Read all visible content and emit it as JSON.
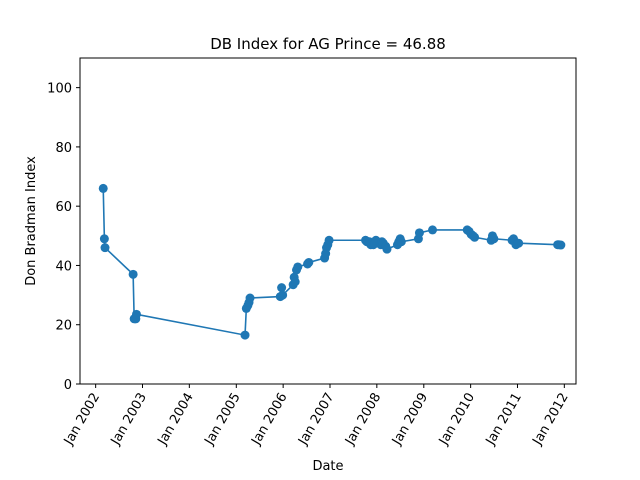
{
  "chart_data": {
    "type": "line",
    "title": "DB Index for AG Prince = 46.88",
    "xlabel": "Date",
    "ylabel": "Don Bradman Index",
    "ylim": [
      0,
      110
    ],
    "yticks": [
      0,
      20,
      40,
      60,
      80,
      100
    ],
    "xlim": [
      "2001-09-01",
      "2012-04-01"
    ],
    "xticks": [
      {
        "date": "2002-01-01",
        "label": "Jan 2002"
      },
      {
        "date": "2003-01-01",
        "label": "Jan 2003"
      },
      {
        "date": "2004-01-01",
        "label": "Jan 2004"
      },
      {
        "date": "2005-01-01",
        "label": "Jan 2005"
      },
      {
        "date": "2006-01-01",
        "label": "Jan 2006"
      },
      {
        "date": "2007-01-01",
        "label": "Jan 2007"
      },
      {
        "date": "2008-01-01",
        "label": "Jan 2008"
      },
      {
        "date": "2009-01-01",
        "label": "Jan 2009"
      },
      {
        "date": "2010-01-01",
        "label": "Jan 2010"
      },
      {
        "date": "2011-01-01",
        "label": "Jan 2011"
      },
      {
        "date": "2012-01-01",
        "label": "Jan 2012"
      }
    ],
    "grid": false,
    "marker": "circle",
    "color": "#1f77b4",
    "series": [
      {
        "x": [
          "2002-03-01",
          "2002-03-10",
          "2002-03-15",
          "2002-10-20",
          "2002-10-28",
          "2002-11-05",
          "2002-11-10",
          "2002-11-15",
          "2005-03-10",
          "2005-03-20",
          "2005-04-01",
          "2005-04-10",
          "2005-04-18",
          "2005-12-10",
          "2005-12-20",
          "2005-12-28",
          "2006-03-20",
          "2006-03-28",
          "2006-04-05",
          "2006-04-15",
          "2006-04-25",
          "2006-07-10",
          "2006-07-20",
          "2006-11-20",
          "2006-11-28",
          "2006-12-05",
          "2006-12-15",
          "2006-12-25",
          "2007-10-05",
          "2007-10-15",
          "2007-11-05",
          "2007-11-15",
          "2007-12-05",
          "2007-12-15",
          "2007-12-25",
          "2008-02-01",
          "2008-02-10",
          "2008-02-20",
          "2008-03-10",
          "2008-03-20",
          "2008-06-10",
          "2008-06-20",
          "2008-07-01",
          "2008-07-10",
          "2008-11-20",
          "2008-11-28",
          "2009-03-10",
          "2009-12-05",
          "2009-12-20",
          "2010-01-05",
          "2010-01-20",
          "2010-02-01",
          "2010-06-10",
          "2010-06-20",
          "2010-07-01",
          "2010-11-20",
          "2010-12-01",
          "2010-12-10",
          "2010-12-20",
          "2011-01-01",
          "2011-01-10",
          "2011-11-10",
          "2011-11-20",
          "2011-12-05"
        ],
        "y": [
          66,
          49,
          46,
          37,
          22,
          22,
          22,
          23.5,
          16.5,
          25.5,
          26.5,
          27.5,
          29,
          29.5,
          32.5,
          30,
          33.5,
          36,
          34.5,
          38.5,
          39.5,
          40.5,
          41,
          42.5,
          44,
          46,
          47,
          48.5,
          48.5,
          48,
          48,
          47,
          47,
          47.5,
          48.5,
          47,
          48,
          47.5,
          46.5,
          45.5,
          47,
          48,
          49,
          48,
          49,
          51,
          52,
          52,
          51.5,
          50.5,
          50,
          49.5,
          48.5,
          50,
          49,
          48.5,
          49,
          48,
          47,
          47.5,
          47.5,
          47,
          47,
          46.9
        ]
      }
    ]
  }
}
